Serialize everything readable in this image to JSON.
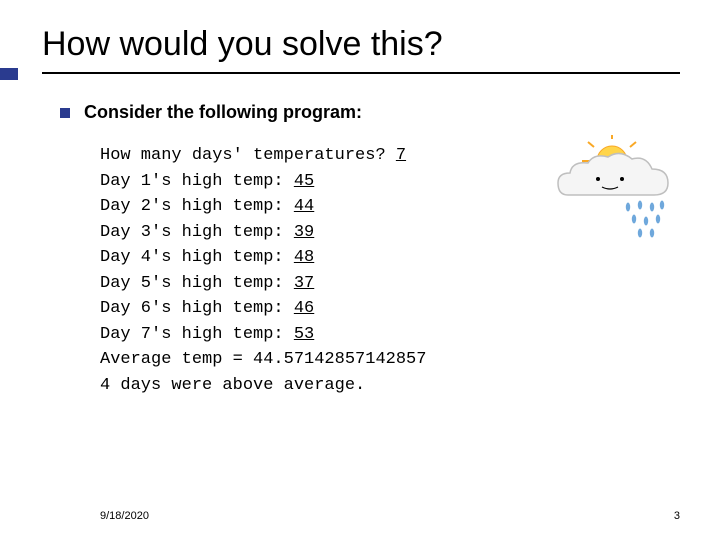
{
  "title": "How would you solve this?",
  "subtitle": "Consider the following program:",
  "code": {
    "prompt_prefix": "How many days' temperatures? ",
    "prompt_value": "7",
    "days": [
      {
        "prefix": "Day 1's high temp: ",
        "value": "45"
      },
      {
        "prefix": "Day 2's high temp: ",
        "value": "44"
      },
      {
        "prefix": "Day 3's high temp: ",
        "value": "39"
      },
      {
        "prefix": "Day 4's high temp: ",
        "value": "48"
      },
      {
        "prefix": "Day 5's high temp: ",
        "value": "37"
      },
      {
        "prefix": "Day 6's high temp: ",
        "value": "46"
      },
      {
        "prefix": "Day 7's high temp: ",
        "value": "53"
      }
    ],
    "avg_line": "Average temp = 44.57142857142857",
    "above_line": "4 days were above average."
  },
  "footer": {
    "date": "9/18/2020",
    "page": "3"
  },
  "colors": {
    "accent": "#2a3b8f",
    "text": "#000000",
    "sun_yellow": "#ffd54a",
    "sun_orange": "#f9a825",
    "cloud_fill": "#f0f0f0",
    "cloud_stroke": "#bfbfbf",
    "rain": "#6fa8dc"
  },
  "typography": {
    "title_fontsize": 34,
    "subtitle_fontsize": 18,
    "code_fontsize": 17,
    "footer_fontsize": 11,
    "code_font": "Courier New"
  }
}
